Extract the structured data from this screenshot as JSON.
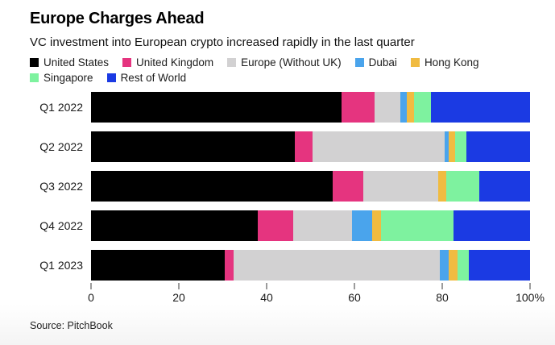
{
  "header": {
    "title": "Europe Charges Ahead",
    "subtitle": "VC investment into European crypto increased rapidly in the last quarter"
  },
  "source": "Source: PitchBook",
  "chart_data": {
    "type": "bar",
    "orientation": "horizontal",
    "stacked": true,
    "unit": "percent",
    "title": "Europe Charges Ahead",
    "xlabel": "",
    "ylabel": "",
    "xlim": [
      0,
      100
    ],
    "grid": false,
    "legend_position": "top",
    "legend_rows": [
      5,
      2
    ],
    "categories": [
      "Q1 2022",
      "Q2 2022",
      "Q3 2022",
      "Q4 2022",
      "Q1 2023"
    ],
    "series": [
      {
        "name": "United States",
        "color": "#000000",
        "values": [
          57.0,
          46.5,
          55.0,
          38.0,
          30.5
        ]
      },
      {
        "name": "United Kingdom",
        "color": "#e5347f",
        "values": [
          7.5,
          4.0,
          7.0,
          8.0,
          2.0
        ]
      },
      {
        "name": "Europe (Without UK)",
        "color": "#d2d1d2",
        "values": [
          6.0,
          30.0,
          17.0,
          13.5,
          47.0
        ]
      },
      {
        "name": "Dubai",
        "color": "#4aa4ec",
        "values": [
          1.5,
          1.0,
          0.0,
          4.5,
          2.0
        ]
      },
      {
        "name": "Hong Kong",
        "color": "#f0bb41",
        "values": [
          1.5,
          1.5,
          2.0,
          2.0,
          2.0
        ]
      },
      {
        "name": "Singapore",
        "color": "#7ef29f",
        "values": [
          4.0,
          2.5,
          7.5,
          16.5,
          2.5
        ]
      },
      {
        "name": "Rest of World",
        "color": "#1b3ae3",
        "values": [
          22.5,
          14.5,
          11.5,
          17.5,
          14.0
        ]
      }
    ],
    "x_ticks": [
      {
        "value": 0,
        "label": "0"
      },
      {
        "value": 20,
        "label": "20"
      },
      {
        "value": 40,
        "label": "40"
      },
      {
        "value": 60,
        "label": "60"
      },
      {
        "value": 80,
        "label": "80"
      },
      {
        "value": 100,
        "label": "100%"
      }
    ]
  }
}
